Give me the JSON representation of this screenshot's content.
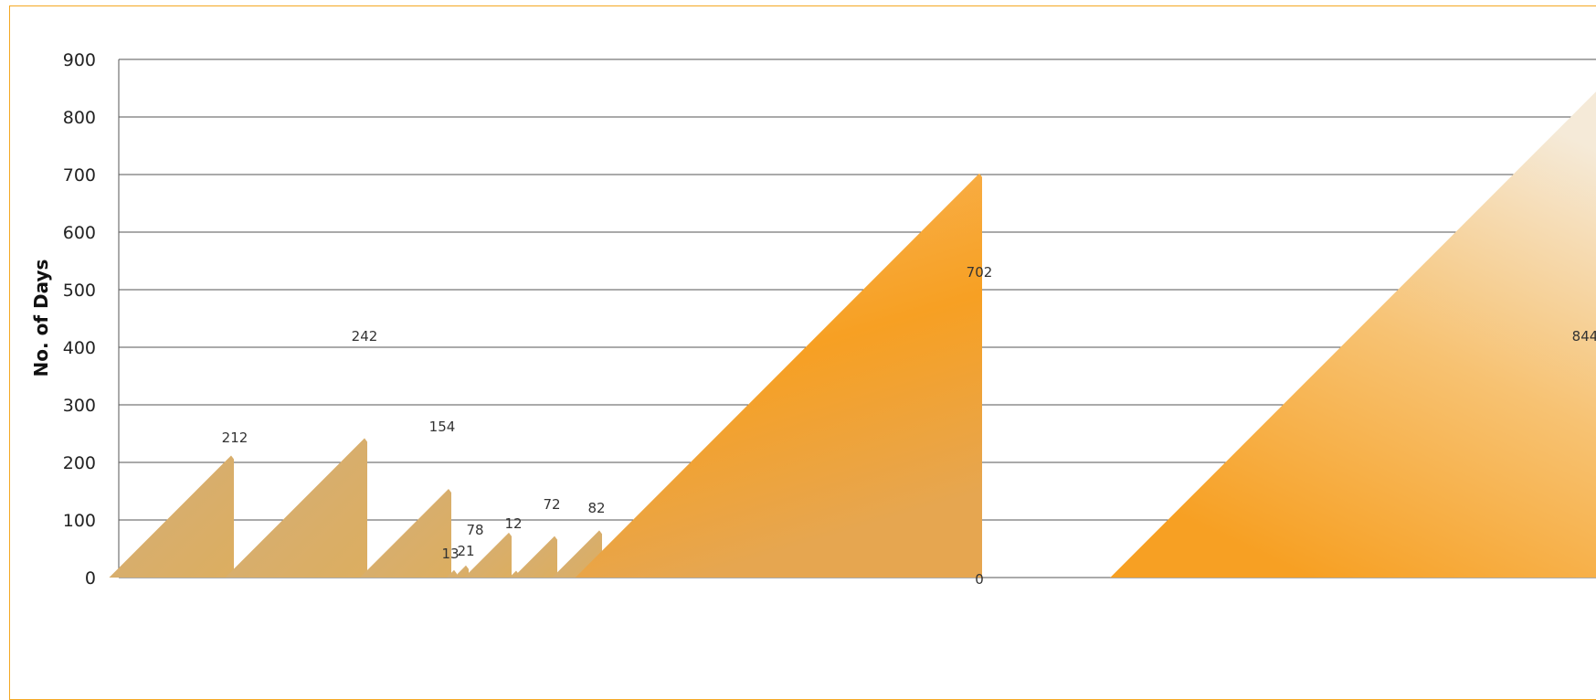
{
  "chart_data": {
    "type": "area",
    "ylabel": "No. of Days",
    "ylim": [
      0,
      900
    ],
    "yticks": [
      0,
      100,
      200,
      300,
      400,
      500,
      600,
      700,
      800,
      900
    ],
    "grid": true,
    "values": [
      212,
      242,
      154,
      13,
      21,
      78,
      12,
      72,
      82,
      702,
      844
    ],
    "data_labels": [
      "212",
      "242",
      "154",
      "13",
      "21",
      "78",
      "12",
      "72",
      "82",
      "702",
      "844"
    ],
    "extra_label": "0",
    "colors": {
      "frame": "#f4a823",
      "fill_tan": "#d8ac68",
      "fill_orange": "#f7a023",
      "fill_cream": "#f5e6cf",
      "grid": "#555555"
    }
  }
}
